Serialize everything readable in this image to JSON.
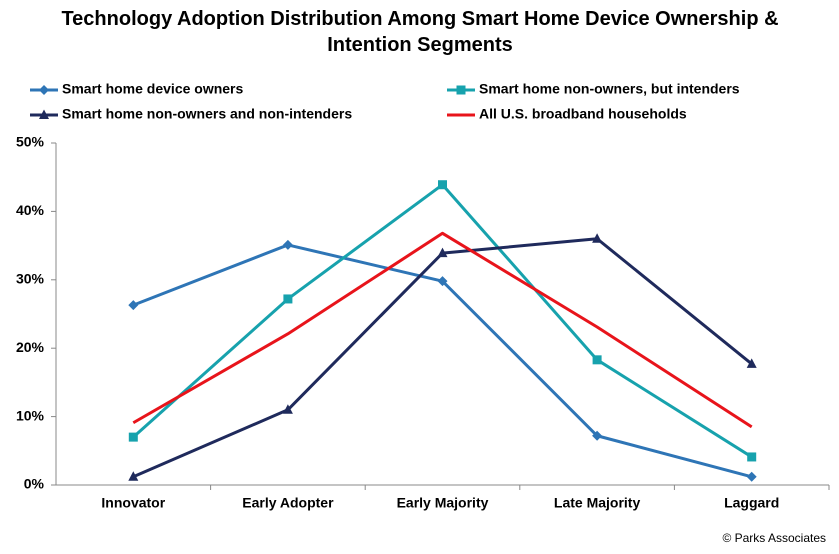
{
  "chart_data": {
    "type": "line",
    "title": "Technology Adoption Distribution Among Smart Home Device Ownership & Intention Segments",
    "categories": [
      "Innovator",
      "Early Adopter",
      "Early Majority",
      "Late Majority",
      "Laggard"
    ],
    "series": [
      {
        "name": "Smart home device owners",
        "color": "#2e75b6",
        "marker": "diamond",
        "values": [
          26.3,
          35.1,
          29.8,
          7.2,
          1.2
        ]
      },
      {
        "name": "Smart home non-owners, but intenders",
        "color": "#17a2ad",
        "marker": "square",
        "values": [
          7.0,
          27.2,
          43.9,
          18.3,
          4.1
        ]
      },
      {
        "name": "Smart home non-owners and non-intenders",
        "color": "#1f2a5c",
        "marker": "triangle",
        "values": [
          1.2,
          11.0,
          33.9,
          36.0,
          17.7
        ]
      },
      {
        "name": "All U.S. broadband households",
        "color": "#e8141b",
        "marker": "none",
        "values": [
          9.1,
          22.1,
          36.8,
          23.1,
          8.5
        ]
      }
    ],
    "ylim": [
      0,
      50
    ],
    "yticks": [
      {
        "value": 0,
        "label": "0%"
      },
      {
        "value": 10,
        "label": "10%"
      },
      {
        "value": 20,
        "label": "20%"
      },
      {
        "value": 30,
        "label": "30%"
      },
      {
        "value": 40,
        "label": "40%"
      },
      {
        "value": 50,
        "label": "50%"
      }
    ],
    "grid": false,
    "annotation": "© Parks Associates"
  }
}
